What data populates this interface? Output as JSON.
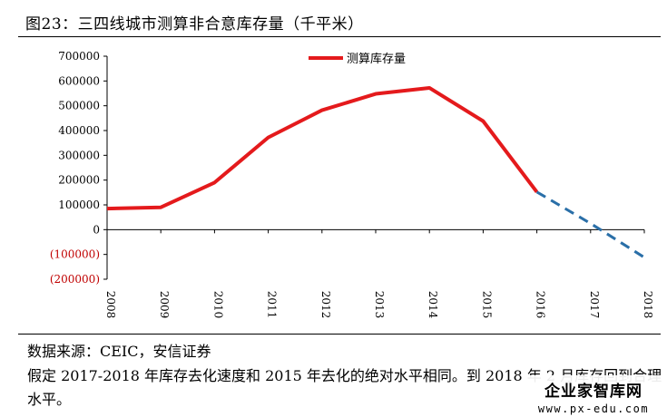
{
  "header": {
    "title": "图23：三四线城市测算非合意库存量（千平米）"
  },
  "footer": {
    "source": "数据来源：CEIC，安信证券",
    "note": "假定 2017-2018 年库存去化速度和 2015 年去化的绝对水平相同。到 2018 年 2 月库存回到合理水平。"
  },
  "watermark": {
    "name": "企业家智库网",
    "url": "www.px-edu.com"
  },
  "chart_data": {
    "type": "line",
    "title": "图23：三四线城市测算非合意库存量（千平米）",
    "xlabel": "",
    "ylabel": "",
    "x": [
      "2008",
      "2009",
      "2010",
      "2011",
      "2012",
      "2013",
      "2014",
      "2015",
      "2016",
      "2017",
      "2018"
    ],
    "ylim": [
      -200000,
      700000
    ],
    "yticks": [
      700000,
      600000,
      500000,
      400000,
      300000,
      200000,
      100000,
      0,
      -100000,
      -200000
    ],
    "ytick_labels": [
      "700000",
      "600000",
      "500000",
      "400000",
      "300000",
      "200000",
      "100000",
      "0",
      "(100000)",
      "(200000)"
    ],
    "negative_tick_color": "#c00000",
    "grid": false,
    "legend_position": "top-center",
    "series": [
      {
        "name": "测算库存量",
        "color": "#e41a1c",
        "style": "solid",
        "values": [
          85000,
          90000,
          190000,
          372000,
          482000,
          548000,
          572000,
          438000,
          152000,
          null,
          null
        ]
      },
      {
        "name": "",
        "color": "#2a6fa8",
        "style": "dashed",
        "in_legend": false,
        "values": [
          null,
          null,
          null,
          null,
          null,
          null,
          null,
          null,
          152000,
          25000,
          -112000
        ]
      }
    ]
  }
}
